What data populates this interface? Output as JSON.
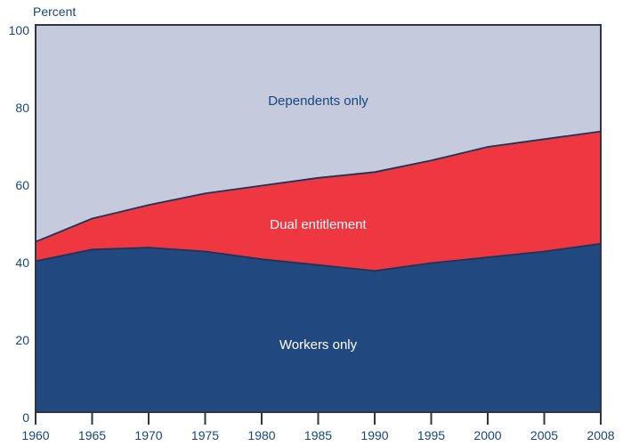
{
  "page": {
    "background": "#ffffff"
  },
  "chart_data": {
    "type": "area",
    "stacked": true,
    "title": "",
    "ylabel": "Percent",
    "xlabel": "",
    "ylim": [
      0,
      100
    ],
    "yticks": [
      0,
      20,
      40,
      60,
      80,
      100
    ],
    "x": [
      1960,
      1965,
      1970,
      1975,
      1980,
      1985,
      1990,
      1995,
      2000,
      2005,
      2008
    ],
    "xtick_labels": [
      "1960",
      "1965",
      "1970",
      "1975",
      "1980",
      "1985",
      "1990",
      "1995",
      "2000",
      "2005",
      "2008"
    ],
    "series": [
      {
        "name": "Workers only",
        "color": "#21497f",
        "values": [
          39,
          42,
          42.5,
          41.5,
          39.5,
          38,
          36.5,
          38.5,
          40,
          41.5,
          43.5
        ]
      },
      {
        "name": "Dual entitlement",
        "color": "#ee3741",
        "values": [
          5,
          8,
          11,
          15,
          19,
          22.5,
          25.5,
          26.5,
          28.5,
          29,
          29
        ]
      },
      {
        "name": "Dependents only",
        "color": "#c6cadd",
        "values": [
          56,
          50,
          46.5,
          43.5,
          41.5,
          39.5,
          38,
          35,
          31.5,
          29.5,
          27.5
        ]
      }
    ],
    "annotations": [
      {
        "text": "Dependents only",
        "x": 1985,
        "y": 80.5,
        "color": "#15477e"
      },
      {
        "text": "Dual entitlement",
        "x": 1985,
        "y": 48.5,
        "color": "#ffffff"
      },
      {
        "text": "Workers only",
        "x": 1985,
        "y": 17.5,
        "color": "#ffffff"
      }
    ],
    "legend": "none",
    "grid": "off",
    "colors": {
      "axis_text": "#15477e",
      "frame": "#2f3542",
      "boundary_line": "#1e3356",
      "background": "#ffffff"
    }
  }
}
